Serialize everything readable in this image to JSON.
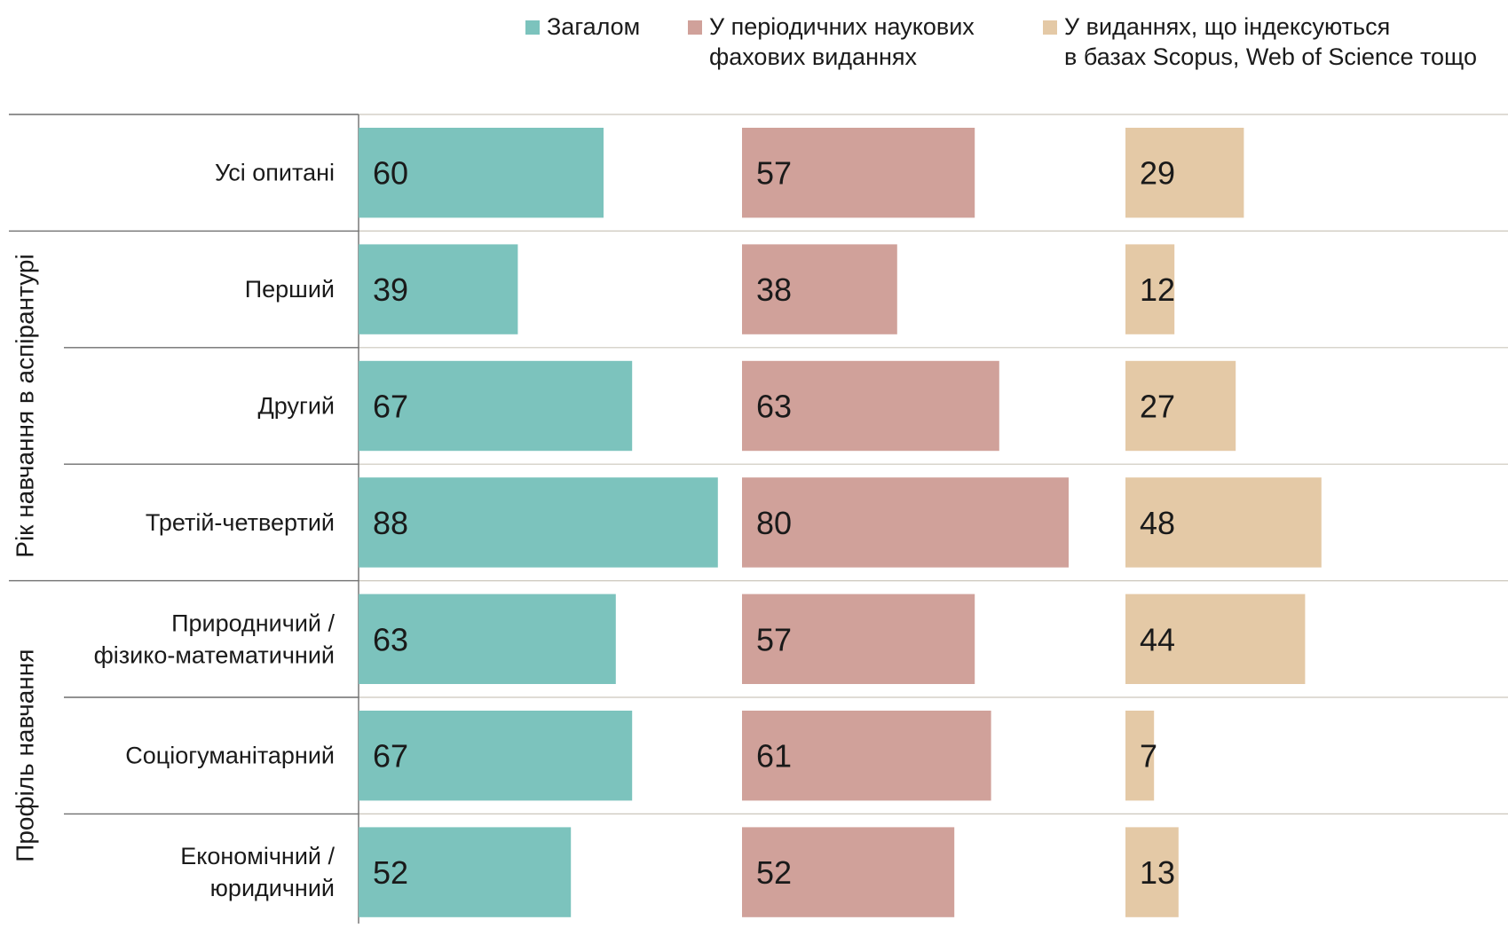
{
  "chart_data": {
    "type": "bar",
    "orientation": "horizontal",
    "grouping": "small-multiples-by-series",
    "legend_position": "top-right",
    "value_max": 100,
    "legend": [
      {
        "series_index": 0,
        "lines": [
          "Загалом"
        ]
      },
      {
        "series_index": 1,
        "lines": [
          "У періодичних наукових",
          "фахових виданнях"
        ]
      },
      {
        "series_index": 2,
        "lines": [
          "У виданнях, що індексуються",
          "в базах Scopus, Web of Science тощо"
        ]
      }
    ],
    "series": [
      {
        "name": "Загалом",
        "color": "#7cc3bd"
      },
      {
        "name": "У періодичних наукових фахових виданнях",
        "color": "#d0a19a"
      },
      {
        "name": "У виданнях, що індексуються в базах Scopus, Web of Science тощо",
        "color": "#e4c9a6"
      }
    ],
    "rows": [
      {
        "label_lines": [
          "Усі опитані"
        ],
        "values": [
          60,
          57,
          29
        ]
      },
      {
        "label_lines": [
          "Перший"
        ],
        "values": [
          39,
          38,
          12
        ]
      },
      {
        "label_lines": [
          "Другий"
        ],
        "values": [
          67,
          63,
          27
        ]
      },
      {
        "label_lines": [
          "Третій-четвертий"
        ],
        "values": [
          88,
          80,
          48
        ]
      },
      {
        "label_lines": [
          "Природничий /",
          "фізико-математичний"
        ],
        "values": [
          63,
          57,
          44
        ]
      },
      {
        "label_lines": [
          "Соціогуманітарний"
        ],
        "values": [
          67,
          61,
          7
        ]
      },
      {
        "label_lines": [
          "Економічний /",
          "юридичний"
        ],
        "values": [
          52,
          52,
          13
        ]
      }
    ],
    "groups": [
      {
        "label": "Рік навчання в аспірантурі",
        "row_start": 1,
        "row_end": 3
      },
      {
        "label": "Профіль навчання",
        "row_start": 4,
        "row_end": 6
      }
    ]
  }
}
